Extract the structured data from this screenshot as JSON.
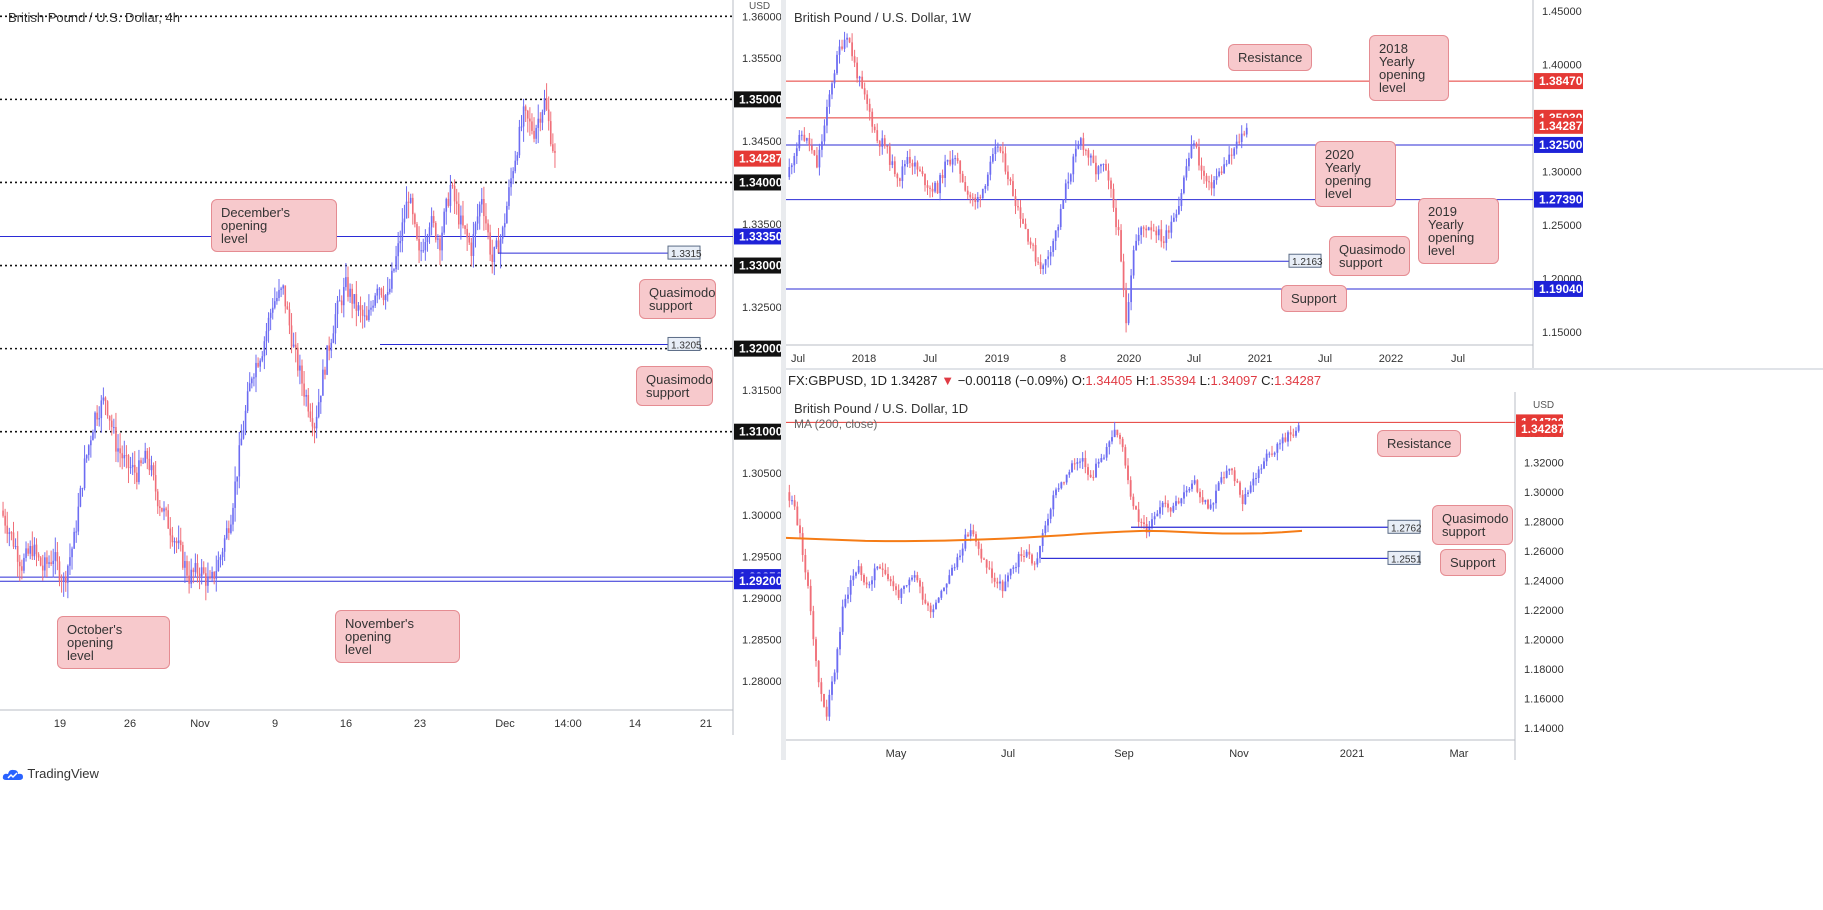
{
  "footer": {
    "brand": "TradingView"
  },
  "infobar": {
    "symbol": "FX:GBPUSD, 1D",
    "last": "1.34287",
    "change": "−0.00118 (−0.09%)",
    "o_label": "O:",
    "o": "1.34405",
    "h_label": "H:",
    "h": "1.35394",
    "l_label": "L:",
    "l": "1.34097",
    "c_label": "C:",
    "c": "1.34287"
  },
  "colors": {
    "up": "#6c6cf2",
    "down": "#f06e78",
    "blue_line": "#2b2bd6",
    "red_line": "#e53935",
    "ma": "#f57c16",
    "callout_bg": "#f7c9cc",
    "callout_border": "#e58c92"
  },
  "chart_data": [
    {
      "type": "candlestick",
      "title": "British Pound / U.S. Dollar, 4h",
      "currency_label": "USD",
      "ylim": [
        1.2765,
        1.361
      ],
      "y_ticks": [
        "1.36000",
        "1.35500",
        "1.35000",
        "1.34500",
        "1.34000",
        "1.33500",
        "1.33000",
        "1.32500",
        "1.32000",
        "1.31500",
        "1.31000",
        "1.30500",
        "1.30000",
        "1.29500",
        "1.29000",
        "1.28500",
        "1.28000"
      ],
      "x_ticks": [
        "19",
        "26",
        "Nov",
        "9",
        "16",
        "23",
        "Dec",
        "14:00",
        "14",
        "21"
      ],
      "close_series": [
        1.3005,
        1.2975,
        1.294,
        1.296,
        1.2935,
        1.295,
        1.292,
        1.297,
        1.306,
        1.312,
        1.314,
        1.3085,
        1.306,
        1.305,
        1.307,
        1.302,
        1.299,
        1.296,
        1.2925,
        1.2935,
        1.2915,
        1.295,
        1.3,
        1.309,
        1.317,
        1.32,
        1.3255,
        1.327,
        1.32,
        1.315,
        1.311,
        1.318,
        1.324,
        1.3275,
        1.325,
        1.323,
        1.328,
        1.326,
        1.332,
        1.3385,
        1.331,
        1.3355,
        1.333,
        1.3395,
        1.335,
        1.332,
        1.3385,
        1.3305,
        1.334,
        1.342,
        1.348,
        1.3462,
        1.3498,
        1.343
      ],
      "levels": [
        {
          "value": 1.36,
          "style": "dotted"
        },
        {
          "value": 1.35,
          "label": "1.35000",
          "style": "dotted"
        },
        {
          "value": 1.34,
          "label": "1.34000",
          "style": "dotted"
        },
        {
          "value": 1.33,
          "label": "1.33000",
          "style": "dotted"
        },
        {
          "value": 1.32,
          "label": "1.32000",
          "style": "dotted"
        },
        {
          "value": 1.31,
          "label": "1.31000",
          "style": "dotted"
        },
        {
          "value": 1.3335,
          "label": "1.33350",
          "style": "blue"
        },
        {
          "value": 1.2925,
          "label": "1.29250",
          "style": "blue"
        },
        {
          "value": 1.292,
          "label": "1.29200",
          "style": "blue"
        }
      ],
      "price_chip": {
        "value": 1.34287,
        "label": "1.34287"
      },
      "small_labels": [
        {
          "value": 1.3315,
          "label": "1.3315"
        },
        {
          "value": 1.3205,
          "label": "1.3205"
        }
      ],
      "callouts": [
        "December's opening\nlevel",
        "Quasimodo\nsupport",
        "Quasimodo\nsupport",
        "October's opening\nlevel",
        "November's opening\nlevel"
      ]
    },
    {
      "type": "candlestick",
      "title": "British Pound / U.S. Dollar, 1W",
      "ylim": [
        1.138,
        1.453
      ],
      "y_ticks": [
        "1.45000",
        "1.40000",
        "1.35000",
        "1.30000",
        "1.25000",
        "1.20000",
        "1.15000"
      ],
      "x_ticks": [
        "Jul",
        "2018",
        "Jul",
        "2019",
        "8",
        "2020",
        "Jul",
        "2021",
        "Jul",
        "2022",
        "Jul"
      ],
      "close_series": [
        1.295,
        1.318,
        1.335,
        1.325,
        1.305,
        1.342,
        1.385,
        1.415,
        1.43,
        1.4,
        1.375,
        1.355,
        1.33,
        1.325,
        1.305,
        1.295,
        1.315,
        1.305,
        1.295,
        1.285,
        1.285,
        1.305,
        1.315,
        1.3,
        1.28,
        1.27,
        1.285,
        1.305,
        1.325,
        1.305,
        1.28,
        1.26,
        1.24,
        1.22,
        1.21,
        1.23,
        1.25,
        1.285,
        1.31,
        1.33,
        1.315,
        1.3,
        1.305,
        1.28,
        1.24,
        1.16,
        1.23,
        1.245,
        1.25,
        1.245,
        1.235,
        1.255,
        1.27,
        1.305,
        1.33,
        1.3,
        1.285,
        1.295,
        1.305,
        1.315,
        1.33,
        1.343
      ],
      "levels": [
        {
          "value": 1.3847,
          "label": "1.38470",
          "style": "red"
        },
        {
          "value": 1.3503,
          "label": "1.35030",
          "style": "red"
        },
        {
          "value": 1.325,
          "label": "1.32500",
          "style": "blue"
        },
        {
          "value": 1.2739,
          "label": "1.27390",
          "style": "blue"
        },
        {
          "value": 1.1904,
          "label": "1.19040",
          "style": "blue"
        }
      ],
      "price_chip": {
        "value": 1.34287,
        "label": "1.34287"
      },
      "small_labels": [
        {
          "value": 1.2163,
          "label": "1.2163"
        }
      ],
      "callouts": [
        "Resistance",
        "2018 Yearly\nopening\nlevel",
        "2020 Yearly\nopening\nlevel",
        "2019 Yearly\nopening\nlevel",
        "Quasimodo\nsupport",
        "Support"
      ]
    },
    {
      "type": "candlestick",
      "title": "British Pound / U.S. Dollar, 1D",
      "currency_label": "USD",
      "indicator": "MA (200, close)",
      "ylim": [
        1.132,
        1.353
      ],
      "y_ticks": [
        "1.34000",
        "1.32000",
        "1.30000",
        "1.28000",
        "1.26000",
        "1.24000",
        "1.22000",
        "1.20000",
        "1.18000",
        "1.16000",
        "1.14000"
      ],
      "x_ticks": [
        "May",
        "Jul",
        "Sep",
        "Nov",
        "2021",
        "Mar"
      ],
      "close_series": [
        1.3,
        1.29,
        1.26,
        1.22,
        1.17,
        1.15,
        1.18,
        1.22,
        1.24,
        1.25,
        1.235,
        1.245,
        1.25,
        1.24,
        1.23,
        1.235,
        1.245,
        1.23,
        1.22,
        1.23,
        1.24,
        1.25,
        1.265,
        1.275,
        1.26,
        1.25,
        1.24,
        1.235,
        1.245,
        1.255,
        1.26,
        1.25,
        1.27,
        1.29,
        1.305,
        1.31,
        1.32,
        1.325,
        1.31,
        1.32,
        1.33,
        1.34,
        1.33,
        1.3,
        1.28,
        1.275,
        1.285,
        1.295,
        1.29,
        1.295,
        1.3,
        1.305,
        1.295,
        1.29,
        1.305,
        1.315,
        1.31,
        1.295,
        1.305,
        1.315,
        1.325,
        1.33,
        1.335,
        1.34,
        1.3428
      ],
      "ma_series": [
        1.269,
        1.2685,
        1.268,
        1.2675,
        1.267,
        1.2668,
        1.2668,
        1.267,
        1.2672,
        1.2676,
        1.268,
        1.2685,
        1.2692,
        1.27,
        1.2708,
        1.2718,
        1.2726,
        1.2733,
        1.2738,
        1.2736,
        1.273,
        1.2724,
        1.272,
        1.272,
        1.2722,
        1.2728,
        1.2738
      ],
      "levels": [
        {
          "value": 1.3473,
          "label": "1.34730",
          "style": "red"
        },
        {
          "value": 1.2762,
          "style": "blue_short"
        },
        {
          "value": 1.2551,
          "style": "blue_mid"
        }
      ],
      "price_chip": {
        "value": 1.34287,
        "label": "1.34287"
      },
      "small_labels": [
        {
          "value": 1.2762,
          "label": "1.2762"
        },
        {
          "value": 1.2551,
          "label": "1.2551"
        }
      ],
      "callouts": [
        "Resistance",
        "Quasimodo\nsupport",
        "Support"
      ]
    }
  ]
}
